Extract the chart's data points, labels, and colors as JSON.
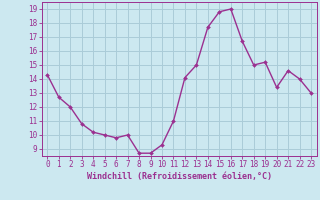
{
  "x": [
    0,
    1,
    2,
    3,
    4,
    5,
    6,
    7,
    8,
    9,
    10,
    11,
    12,
    13,
    14,
    15,
    16,
    17,
    18,
    19,
    20,
    21,
    22,
    23
  ],
  "y": [
    14.3,
    12.7,
    12.0,
    10.8,
    10.2,
    10.0,
    9.8,
    10.0,
    8.7,
    8.7,
    9.3,
    11.0,
    14.1,
    15.0,
    17.7,
    18.8,
    19.0,
    16.7,
    15.0,
    15.2,
    13.4,
    14.6,
    14.0,
    13.0
  ],
  "line_color": "#9b3090",
  "marker_color": "#9b3090",
  "bg_color": "#cce8f0",
  "grid_color": "#aaccd8",
  "xlabel": "Windchill (Refroidissement éolien,°C)",
  "yticks": [
    9,
    10,
    11,
    12,
    13,
    14,
    15,
    16,
    17,
    18,
    19
  ],
  "xticks": [
    0,
    1,
    2,
    3,
    4,
    5,
    6,
    7,
    8,
    9,
    10,
    11,
    12,
    13,
    14,
    15,
    16,
    17,
    18,
    19,
    20,
    21,
    22,
    23
  ],
  "ylim": [
    8.5,
    19.5
  ],
  "xlim": [
    -0.5,
    23.5
  ],
  "tick_color": "#9b3090",
  "label_color": "#9b3090",
  "axis_color": "#9b3090"
}
